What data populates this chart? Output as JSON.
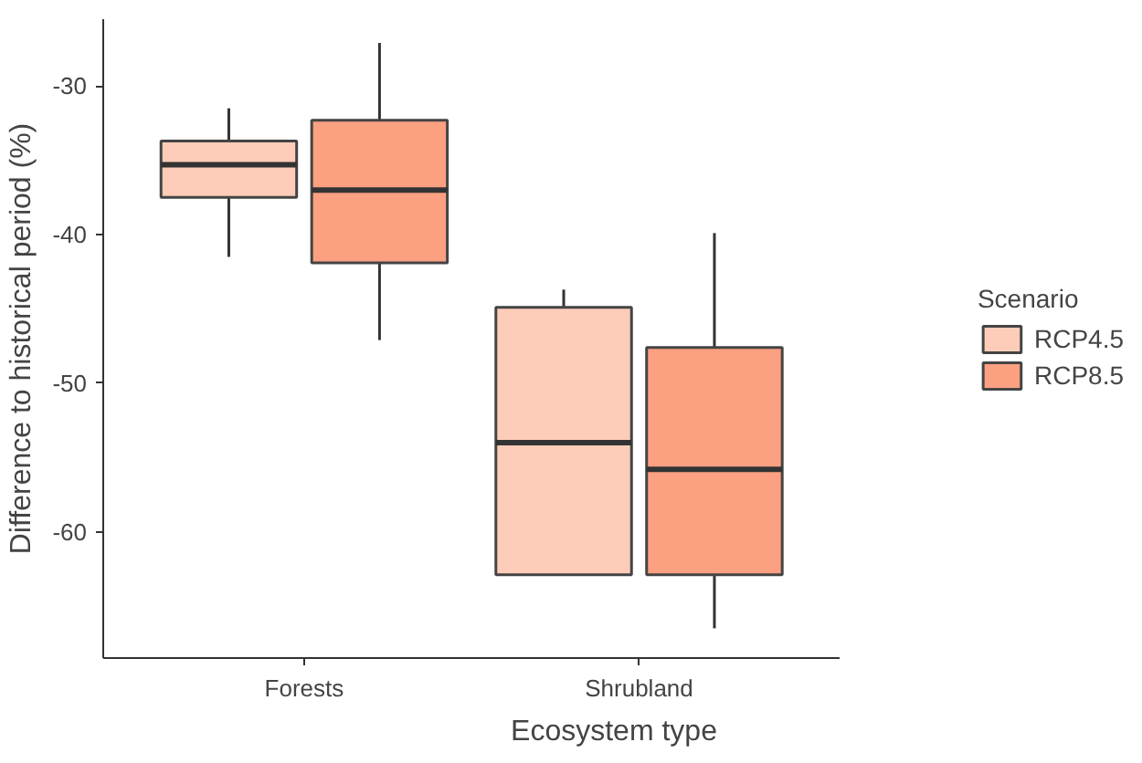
{
  "chart_data": {
    "type": "box",
    "xlabel": "Ecosystem type",
    "ylabel": "Difference to historical period (%)",
    "legend_title": "Scenario",
    "categories": [
      "Forests",
      "Shrubland"
    ],
    "series": [
      {
        "name": "RCP4.5",
        "color": "#fdcdb9",
        "boxes": [
          {
            "low": -41.5,
            "q1": -37.5,
            "median": -35.3,
            "q3": -33.7,
            "high": -31.5
          },
          {
            "low": -62.9,
            "q1": -62.9,
            "median": -54.0,
            "q3": -44.9,
            "high": -43.7
          }
        ]
      },
      {
        "name": "RCP8.5",
        "color": "#fca082",
        "boxes": [
          {
            "low": -47.1,
            "q1": -41.9,
            "median": -37.0,
            "q3": -32.3,
            "high": -27.1
          },
          {
            "low": -66.5,
            "q1": -62.9,
            "median": -55.8,
            "q3": -47.6,
            "high": -39.9
          }
        ]
      }
    ],
    "ylim": [
      -68.5,
      -25.5
    ],
    "yticks": [
      -60,
      -50,
      -40,
      -30
    ],
    "grid": false,
    "legend": "right"
  }
}
